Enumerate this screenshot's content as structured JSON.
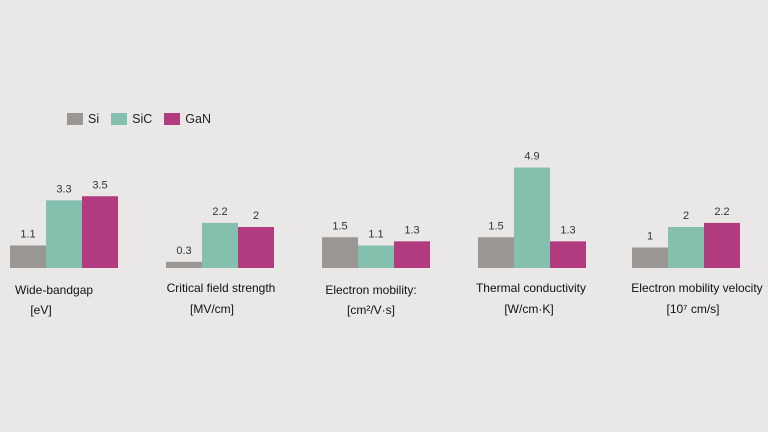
{
  "chart_data": {
    "type": "bar",
    "title": "",
    "series_names": [
      "Si",
      "SiC",
      "GaN"
    ],
    "colors": {
      "Si": "#9a9694",
      "SiC": "#85bfad",
      "GaN": "#b23a7f"
    },
    "groups": [
      {
        "label": "Wide-bandgap",
        "unit": "[eV]",
        "values": [
          1.1,
          3.3,
          3.5
        ],
        "value_labels": [
          "1.1",
          "3.3",
          "3.5"
        ]
      },
      {
        "label": "Critical field strength",
        "unit": "[MV/cm]",
        "values": [
          0.3,
          2.2,
          2.0
        ],
        "value_labels": [
          "0.3",
          "2.2",
          "2"
        ]
      },
      {
        "label": "Electron mobility:",
        "unit": "[cm²/V·s]",
        "values": [
          1.5,
          1.1,
          1.3
        ],
        "value_labels": [
          "1.5",
          "1.1",
          "1.3"
        ]
      },
      {
        "label": "Thermal conductivity",
        "unit": "[W/cm·K]",
        "values": [
          1.5,
          4.9,
          1.3
        ],
        "value_labels": [
          "1.5",
          "4.9",
          "1.3"
        ]
      },
      {
        "label": "Electron mobility velocity",
        "unit": "[10⁷ cm/s]",
        "values": [
          1.0,
          2.0,
          2.2
        ],
        "value_labels": [
          "1",
          "2",
          "2.2"
        ]
      }
    ]
  },
  "legend": {
    "items": [
      {
        "label": "Si",
        "color": "#9a9694"
      },
      {
        "label": "SiC",
        "color": "#85bfad"
      },
      {
        "label": "GaN",
        "color": "#b23a7f"
      }
    ]
  }
}
